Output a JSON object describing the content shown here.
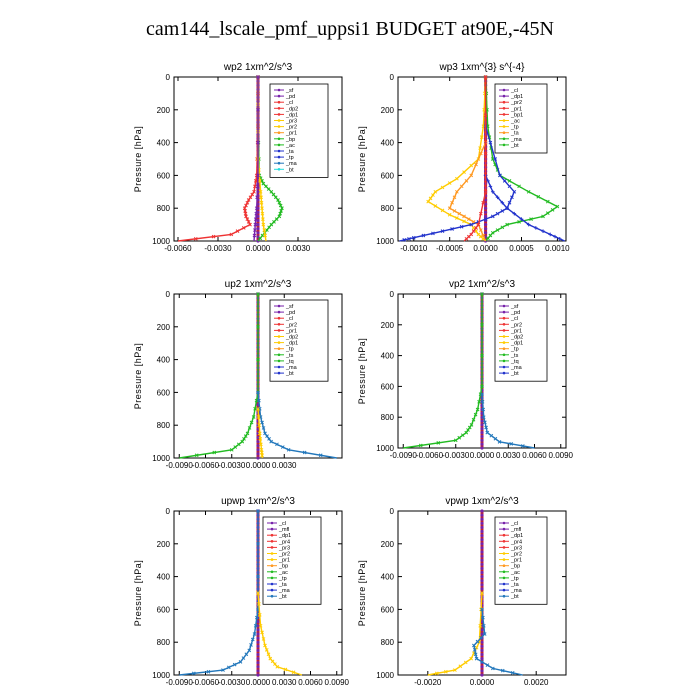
{
  "figure": {
    "title": "cam144_lscale_pmf_uppsi1  BUDGET at90E,-45N"
  },
  "chart_data": [
    {
      "type": "line",
      "title": "wp2  1xm^2/s^3",
      "ylabel": "Pressure [hPa]",
      "ylim": [
        1000,
        0
      ],
      "yticks": [
        0,
        200,
        400,
        600,
        800,
        1000
      ],
      "xlim": [
        -0.0063,
        0.0063
      ],
      "xticks": [
        -0.006,
        -0.003,
        0.0,
        0.003
      ],
      "xtick_labels": [
        "-0.0060",
        "-0.0030",
        "0.0000",
        "0.0030"
      ],
      "legend": [
        "_sf",
        "_pd",
        "_cl",
        "_dp2",
        "_dp1",
        "_pr3",
        "_pr2",
        "_pr1",
        "_bp",
        "_ac",
        "_ta",
        "_tp",
        "_ma",
        "_bt"
      ],
      "series": [
        {
          "name": "_bp",
          "color": "#22bb22",
          "marker": "x",
          "points": [
            [
              0,
              0
            ],
            [
              0,
              300
            ],
            [
              0.0001,
              600
            ],
            [
              0.0004,
              650
            ],
            [
              0.001,
              700
            ],
            [
              0.0015,
              750
            ],
            [
              0.0018,
              800
            ],
            [
              0.0016,
              850
            ],
            [
              0.001,
              900
            ],
            [
              0.0005,
              950
            ],
            [
              0,
              1000
            ]
          ]
        },
        {
          "name": "_dp1",
          "color": "#ee3333",
          "marker": "x",
          "points": [
            [
              0,
              0
            ],
            [
              0,
              300
            ],
            [
              -0.0001,
              600
            ],
            [
              -0.0003,
              700
            ],
            [
              -0.0007,
              750
            ],
            [
              -0.001,
              800
            ],
            [
              -0.0009,
              850
            ],
            [
              -0.0006,
              900
            ],
            [
              -0.002,
              960
            ],
            [
              -0.006,
              1000
            ]
          ]
        },
        {
          "name": "_pr2",
          "color": "#ffcc00",
          "marker": "x",
          "points": [
            [
              0,
              0
            ],
            [
              0,
              500
            ],
            [
              0.0002,
              700
            ],
            [
              0.0003,
              800
            ],
            [
              0.0004,
              900
            ],
            [
              0.0006,
              1000
            ]
          ]
        },
        {
          "name": "_pd",
          "color": "#7722aa",
          "marker": "x",
          "points": [
            [
              0,
              0
            ],
            [
              0,
              600
            ],
            [
              -0.0001,
              800
            ],
            [
              -0.0002,
              900
            ],
            [
              -0.0003,
              1000
            ]
          ]
        }
      ]
    },
    {
      "type": "line",
      "title": "wp3  1xm^{3} s^{-4}",
      "ylabel": "Pressure [hPa]",
      "ylim": [
        1000,
        0
      ],
      "yticks": [
        0,
        200,
        400,
        600,
        800,
        1000
      ],
      "xlim": [
        -0.00122,
        0.00112
      ],
      "xticks": [
        -0.001,
        -0.0005,
        0.0,
        0.0005,
        0.001
      ],
      "xtick_labels": [
        "-0.0010",
        "-0.0005",
        "0.0000",
        "0.0005",
        "0.0010"
      ],
      "legend": [
        "_cl",
        "_dp1",
        "_pr2",
        "_pr1",
        "_bp1",
        "_ac",
        "_tp",
        "_ta",
        "_ma",
        "_bt"
      ],
      "series": [
        {
          "name": "_ac",
          "color": "#22bb22",
          "marker": "x",
          "points": [
            [
              0,
              0
            ],
            [
              3e-05,
              300
            ],
            [
              0.0001,
              500
            ],
            [
              0.0002,
              600
            ],
            [
              0.0006,
              700
            ],
            [
              0.001,
              790
            ],
            [
              0.0008,
              850
            ],
            [
              0.0003,
              900
            ],
            [
              0.0001,
              950
            ],
            [
              0,
              1000
            ]
          ]
        },
        {
          "name": "_pr1",
          "color": "#ffcc00",
          "marker": "x",
          "points": [
            [
              0,
              0
            ],
            [
              -3e-05,
              300
            ],
            [
              -0.0001,
              500
            ],
            [
              -0.0004,
              620
            ],
            [
              -0.0007,
              700
            ],
            [
              -0.0008,
              760
            ],
            [
              -0.0005,
              840
            ],
            [
              -0.0002,
              900
            ],
            [
              -0.0001,
              960
            ],
            [
              0,
              1000
            ]
          ]
        },
        {
          "name": "_pr2",
          "color": "#ff9922",
          "marker": "x",
          "points": [
            [
              0,
              400
            ],
            [
              -0.0002,
              600
            ],
            [
              -0.0004,
              700
            ],
            [
              -0.0005,
              800
            ],
            [
              -0.0003,
              850
            ],
            [
              -0.0001,
              900
            ],
            [
              0,
              1000
            ]
          ]
        },
        {
          "name": "_tp",
          "color": "#2233cc",
          "marker": "x",
          "points": [
            [
              0,
              300
            ],
            [
              0.0002,
              600
            ],
            [
              0.0004,
              700
            ],
            [
              0.0003,
              800
            ],
            [
              0.0001,
              850
            ],
            [
              -0.0002,
              900
            ],
            [
              -0.0006,
              940
            ],
            [
              -0.001,
              980
            ],
            [
              -0.0012,
              1000
            ]
          ]
        },
        {
          "name": "_ta",
          "color": "#2233cc",
          "marker": "+",
          "points": [
            [
              0,
              600
            ],
            [
              0.0001,
              700
            ],
            [
              0.0003,
              800
            ],
            [
              0.0006,
              900
            ],
            [
              0.0009,
              960
            ],
            [
              0.0011,
              1000
            ]
          ]
        },
        {
          "name": "_dp1",
          "color": "#ee3333",
          "marker": "x",
          "points": [
            [
              0,
              0
            ],
            [
              0,
              700
            ],
            [
              -0.0001,
              900
            ],
            [
              -0.0002,
              960
            ],
            [
              -0.0003,
              1000
            ]
          ]
        }
      ]
    },
    {
      "type": "line",
      "title": "up2  1xm^2/s^3",
      "ylabel": "Pressure [hPa]",
      "ylim": [
        1000,
        0
      ],
      "yticks": [
        0,
        200,
        400,
        600,
        800,
        1000
      ],
      "xlim": [
        -0.0096,
        0.0096
      ],
      "xticks": [
        -0.009,
        -0.006,
        -0.003,
        0.0,
        0.003
      ],
      "xtick_labels": [
        "-0.0090",
        "-0.0060",
        "-0.0030",
        "0.0000",
        "0.0030"
      ],
      "legend": [
        "_sf",
        "_pd",
        "_cl",
        "_pr2",
        "_pr1",
        "_dp2",
        "_dp1",
        "_tp",
        "_ts",
        "_tq",
        "_ma",
        "_bt"
      ],
      "series": [
        {
          "name": "_dp2",
          "color": "#22bb22",
          "marker": "x",
          "points": [
            [
              0,
              0
            ],
            [
              0,
              600
            ],
            [
              -0.0005,
              750
            ],
            [
              -0.0012,
              850
            ],
            [
              -0.0018,
              900
            ],
            [
              -0.003,
              950
            ],
            [
              -0.009,
              1000
            ]
          ]
        },
        {
          "name": "_tp",
          "color": "#2277bb",
          "marker": "x",
          "points": [
            [
              0,
              600
            ],
            [
              0.0003,
              750
            ],
            [
              0.0008,
              850
            ],
            [
              0.0015,
              900
            ],
            [
              0.0035,
              950
            ],
            [
              0.009,
              1000
            ]
          ]
        },
        {
          "name": "_pr2",
          "color": "#ffcc00",
          "marker": "x",
          "points": [
            [
              0,
              700
            ],
            [
              0.0002,
              850
            ],
            [
              0.0004,
              950
            ],
            [
              0.0005,
              1000
            ]
          ]
        }
      ]
    },
    {
      "type": "line",
      "title": "vp2  1xm^2/s^3",
      "ylabel": "Pressure [hPa]",
      "ylim": [
        1000,
        0
      ],
      "yticks": [
        0,
        200,
        400,
        600,
        800,
        1000
      ],
      "xlim": [
        -0.0096,
        0.0096
      ],
      "xticks": [
        -0.009,
        -0.006,
        -0.003,
        0.0,
        0.003,
        0.006,
        0.009
      ],
      "xtick_labels": [
        "-0.0090",
        "-0.0060",
        "-0.0030",
        "0.0000",
        "0.0030",
        "0.0060",
        "0.0090"
      ],
      "legend": [
        "_sf",
        "_pd",
        "_cl",
        "_pr2",
        "_pr1",
        "_dp2",
        "_dp1",
        "_tp",
        "_ts",
        "_tq",
        "_ma",
        "_bt"
      ],
      "series": [
        {
          "name": "_dp2",
          "color": "#22bb22",
          "marker": "x",
          "points": [
            [
              0,
              0
            ],
            [
              0,
              600
            ],
            [
              -0.0005,
              750
            ],
            [
              -0.0012,
              850
            ],
            [
              -0.0018,
              900
            ],
            [
              -0.003,
              950
            ],
            [
              -0.009,
              1000
            ]
          ]
        },
        {
          "name": "_tp",
          "color": "#2277bb",
          "marker": "x",
          "points": [
            [
              0,
              650
            ],
            [
              0.0002,
              800
            ],
            [
              0.0006,
              900
            ],
            [
              0.002,
              960
            ],
            [
              0.006,
              1000
            ]
          ]
        }
      ]
    },
    {
      "type": "line",
      "title": "upwp  1xm^2/s^3",
      "ylabel": "Pressure [hPa]",
      "ylim": [
        1000,
        0
      ],
      "yticks": [
        0,
        200,
        400,
        600,
        800,
        1000
      ],
      "xlim": [
        -0.0096,
        0.0096
      ],
      "xticks": [
        -0.009,
        -0.006,
        -0.003,
        0.0,
        0.003,
        0.006,
        0.009
      ],
      "xtick_labels": [
        "-0.0090",
        "-0.0060",
        "-0.0030",
        "0.0000",
        "0.0030",
        "0.0060",
        "0.0090"
      ],
      "legend": [
        "_cl",
        "_mfl",
        "_dp1",
        "_pr4",
        "_pr3",
        "_pr2",
        "_pr1",
        "_bp",
        "_ac",
        "_tp",
        "_ta",
        "_ma",
        "_bt"
      ],
      "series": [
        {
          "name": "_tp",
          "color": "#2277bb",
          "marker": "x",
          "points": [
            [
              0,
              0
            ],
            [
              0,
              600
            ],
            [
              -0.0004,
              750
            ],
            [
              -0.001,
              850
            ],
            [
              -0.002,
              920
            ],
            [
              -0.004,
              970
            ],
            [
              -0.009,
              1000
            ]
          ]
        },
        {
          "name": "_pr1",
          "color": "#ffcc00",
          "marker": "x",
          "points": [
            [
              0,
              500
            ],
            [
              0.0003,
              700
            ],
            [
              0.0008,
              820
            ],
            [
              0.0014,
              900
            ],
            [
              0.0022,
              950
            ],
            [
              0.005,
              1000
            ]
          ]
        }
      ]
    },
    {
      "type": "line",
      "title": "vpwp  1xm^2/s^3",
      "ylabel": "Pressure [hPa]",
      "ylim": [
        1000,
        0
      ],
      "yticks": [
        0,
        200,
        400,
        600,
        800,
        1000
      ],
      "xlim": [
        -0.0031,
        0.0031
      ],
      "xticks": [
        -0.002,
        0.0,
        0.002
      ],
      "xtick_labels": [
        "-0.0020",
        "0.0000",
        "0.0020"
      ],
      "legend": [
        "_cl",
        "_mfl",
        "_dp1",
        "_pr4",
        "_pr3",
        "_pr2",
        "_pr1",
        "_bp",
        "_ac",
        "_tp",
        "_ta",
        "_ma",
        "_bt"
      ],
      "series": [
        {
          "name": "_pr1",
          "color": "#ffcc00",
          "marker": "x",
          "points": [
            [
              0,
              500
            ],
            [
              -0.0001,
              800
            ],
            [
              -0.0004,
              900
            ],
            [
              -0.001,
              970
            ],
            [
              -0.002,
              1000
            ]
          ]
        },
        {
          "name": "_tp",
          "color": "#2277bb",
          "marker": "x",
          "points": [
            [
              0,
              600
            ],
            [
              0.0001,
              750
            ],
            [
              -0.0003,
              820
            ],
            [
              -0.0002,
              900
            ],
            [
              0.0004,
              960
            ],
            [
              0.0015,
              1000
            ]
          ]
        }
      ]
    }
  ],
  "colors": {
    "main_line": "#cc2222",
    "main_line_marker": "#7722aa",
    "frame": "#000000"
  },
  "legend_marker_colors": [
    "#7722aa",
    "#7722aa",
    "#ee3333",
    "#ee3333",
    "#ee3333",
    "#ffcc00",
    "#ffcc00",
    "#ff9922",
    "#22bb22",
    "#22bb22",
    "#2233cc",
    "#2233cc",
    "#2277bb",
    "#22dddd"
  ]
}
